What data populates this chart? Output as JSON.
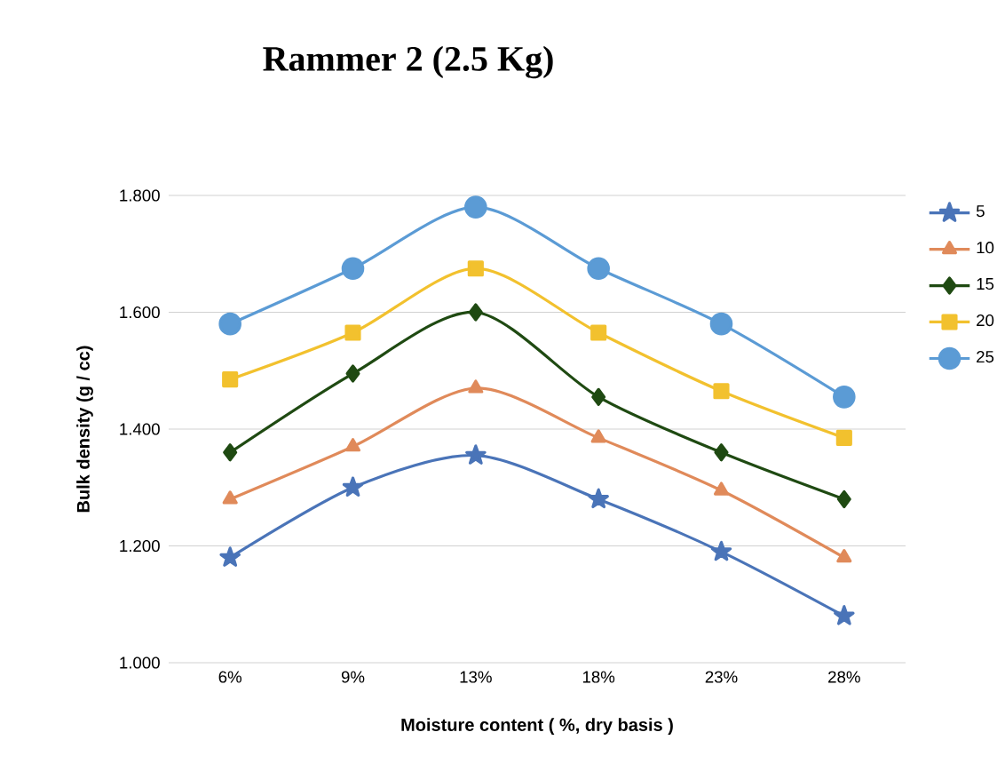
{
  "chart_data": {
    "type": "line",
    "title": "Rammer 2 (2.5 Kg)",
    "xlabel": "Moisture content ( %, dry basis )",
    "ylabel": "Bulk density (g / cc)",
    "categories": [
      "6%",
      "9%",
      "13%",
      "18%",
      "23%",
      "28%"
    ],
    "series": [
      {
        "name": "5",
        "color": "#4a74b8",
        "marker": "star",
        "values": [
          1.18,
          1.3,
          1.355,
          1.28,
          1.19,
          1.08
        ]
      },
      {
        "name": "10",
        "color": "#e08a5a",
        "marker": "triangle",
        "values": [
          1.28,
          1.37,
          1.47,
          1.385,
          1.295,
          1.18
        ]
      },
      {
        "name": "15",
        "color": "#1f4a12",
        "marker": "diamond",
        "values": [
          1.36,
          1.495,
          1.6,
          1.455,
          1.36,
          1.28
        ]
      },
      {
        "name": "20",
        "color": "#f2c12e",
        "marker": "square",
        "values": [
          1.485,
          1.565,
          1.675,
          1.565,
          1.465,
          1.385
        ]
      },
      {
        "name": "25",
        "color": "#5b9bd5",
        "marker": "circle",
        "values": [
          1.58,
          1.675,
          1.78,
          1.675,
          1.58,
          1.455
        ]
      }
    ],
    "ylim": [
      1.0,
      1.8
    ],
    "yticks": [
      {
        "value": 1.0,
        "label": "1.000"
      },
      {
        "value": 1.2,
        "label": "1.200"
      },
      {
        "value": 1.4,
        "label": "1.400"
      },
      {
        "value": 1.6,
        "label": "1.600"
      },
      {
        "value": 1.8,
        "label": "1.800"
      }
    ],
    "grid": "y",
    "legend": "right",
    "line_style": "solid"
  }
}
